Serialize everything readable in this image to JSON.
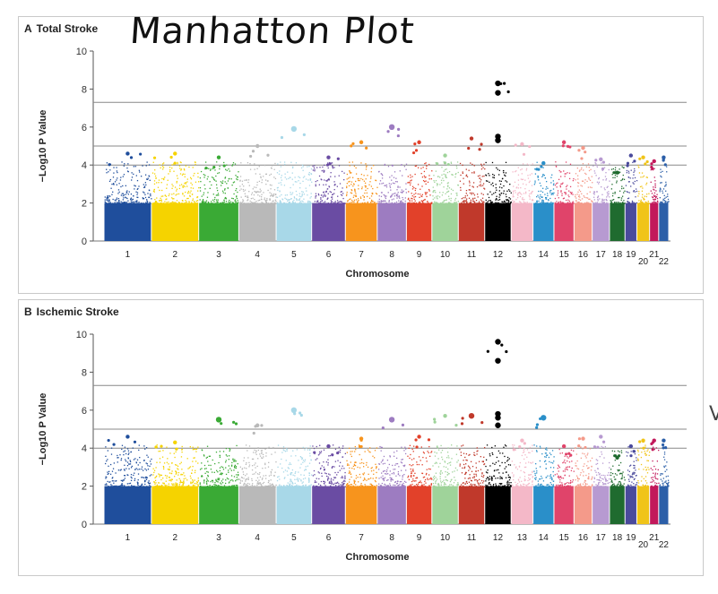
{
  "annotation": {
    "text": "Manhatton Plot"
  },
  "stray_mark": "V",
  "chart_data": [
    {
      "type": "scatter",
      "panel_letter": "A",
      "title": "Total Stroke",
      "xlabel": "Chromosome",
      "ylabel": "−Log10 P Value",
      "ylim": [
        0,
        10
      ],
      "yticks": [
        0,
        2,
        4,
        6,
        8,
        10
      ],
      "thresholds": [
        7.3,
        5,
        4
      ],
      "chromosomes": [
        "1",
        "2",
        "3",
        "4",
        "5",
        "6",
        "7",
        "8",
        "9",
        "10",
        "11",
        "12",
        "13",
        "14",
        "15",
        "16",
        "17",
        "18",
        "19",
        "20",
        "21",
        "22"
      ],
      "chromosome_colors": [
        "#1f4e9c",
        "#f5d300",
        "#3aaa35",
        "#b9b9b9",
        "#a8d8e8",
        "#6a4ca3",
        "#f7941d",
        "#9d7cc1",
        "#e2412a",
        "#9fd39a",
        "#c0392b",
        "#000000",
        "#f4b8c8",
        "#2a8fc9",
        "#e0446a",
        "#f49a8a",
        "#b79ad1",
        "#1f6b2f",
        "#4a4a9c",
        "#f0c419",
        "#c2185b",
        "#2c5fa8"
      ],
      "peaks": [
        {
          "chromosome": "1",
          "max": 4.6
        },
        {
          "chromosome": "2",
          "max": 4.6
        },
        {
          "chromosome": "3",
          "max": 4.4
        },
        {
          "chromosome": "4",
          "max": 5.0
        },
        {
          "chromosome": "5",
          "max": 5.9
        },
        {
          "chromosome": "6",
          "max": 4.4
        },
        {
          "chromosome": "7",
          "max": 5.2
        },
        {
          "chromosome": "8",
          "max": 6.0
        },
        {
          "chromosome": "9",
          "max": 5.2
        },
        {
          "chromosome": "10",
          "max": 4.5
        },
        {
          "chromosome": "11",
          "max": 5.4
        },
        {
          "chromosome": "12",
          "max": 8.3
        },
        {
          "chromosome": "13",
          "max": 5.1
        },
        {
          "chromosome": "14",
          "max": 4.1
        },
        {
          "chromosome": "15",
          "max": 5.2
        },
        {
          "chromosome": "16",
          "max": 4.9
        },
        {
          "chromosome": "17",
          "max": 4.3
        },
        {
          "chromosome": "18",
          "max": 3.6
        },
        {
          "chromosome": "19",
          "max": 4.5
        },
        {
          "chromosome": "20",
          "max": 4.4
        },
        {
          "chromosome": "21",
          "max": 4.2
        },
        {
          "chromosome": "22",
          "max": 4.4
        }
      ],
      "highlighted_points": [
        {
          "chromosome": "12",
          "value": 8.3
        },
        {
          "chromosome": "12",
          "value": 7.8
        },
        {
          "chromosome": "12",
          "value": 5.5
        },
        {
          "chromosome": "12",
          "value": 5.3
        },
        {
          "chromosome": "8",
          "value": 6.0
        },
        {
          "chromosome": "5",
          "value": 5.9
        }
      ]
    },
    {
      "type": "scatter",
      "panel_letter": "B",
      "title": "Ischemic Stroke",
      "xlabel": "Chromosome",
      "ylabel": "−Log10 P Value",
      "ylim": [
        0,
        10
      ],
      "yticks": [
        0,
        2,
        4,
        6,
        8,
        10
      ],
      "thresholds": [
        7.3,
        5,
        4
      ],
      "chromosomes": [
        "1",
        "2",
        "3",
        "4",
        "5",
        "6",
        "7",
        "8",
        "9",
        "10",
        "11",
        "12",
        "13",
        "14",
        "15",
        "16",
        "17",
        "18",
        "19",
        "20",
        "21",
        "22"
      ],
      "chromosome_colors": [
        "#1f4e9c",
        "#f5d300",
        "#3aaa35",
        "#b9b9b9",
        "#a8d8e8",
        "#6a4ca3",
        "#f7941d",
        "#9d7cc1",
        "#e2412a",
        "#9fd39a",
        "#c0392b",
        "#000000",
        "#f4b8c8",
        "#2a8fc9",
        "#e0446a",
        "#f49a8a",
        "#b79ad1",
        "#1f6b2f",
        "#4a4a9c",
        "#f0c419",
        "#c2185b",
        "#2c5fa8"
      ],
      "peaks": [
        {
          "chromosome": "1",
          "max": 4.6
        },
        {
          "chromosome": "2",
          "max": 4.3
        },
        {
          "chromosome": "3",
          "max": 5.5
        },
        {
          "chromosome": "4",
          "max": 5.2
        },
        {
          "chromosome": "5",
          "max": 6.0
        },
        {
          "chromosome": "6",
          "max": 4.1
        },
        {
          "chromosome": "7",
          "max": 4.5
        },
        {
          "chromosome": "8",
          "max": 5.5
        },
        {
          "chromosome": "9",
          "max": 4.6
        },
        {
          "chromosome": "10",
          "max": 5.7
        },
        {
          "chromosome": "11",
          "max": 5.7
        },
        {
          "chromosome": "12",
          "max": 9.6
        },
        {
          "chromosome": "13",
          "max": 4.4
        },
        {
          "chromosome": "14",
          "max": 5.6
        },
        {
          "chromosome": "15",
          "max": 4.1
        },
        {
          "chromosome": "16",
          "max": 4.5
        },
        {
          "chromosome": "17",
          "max": 4.6
        },
        {
          "chromosome": "18",
          "max": 3.5
        },
        {
          "chromosome": "19",
          "max": 4.1
        },
        {
          "chromosome": "20",
          "max": 4.4
        },
        {
          "chromosome": "21",
          "max": 4.4
        },
        {
          "chromosome": "22",
          "max": 4.4
        }
      ],
      "highlighted_points": [
        {
          "chromosome": "12",
          "value": 9.6
        },
        {
          "chromosome": "12",
          "value": 8.6
        },
        {
          "chromosome": "12",
          "value": 5.8
        },
        {
          "chromosome": "12",
          "value": 5.6
        },
        {
          "chromosome": "12",
          "value": 5.2
        },
        {
          "chromosome": "14",
          "value": 5.6
        },
        {
          "chromosome": "11",
          "value": 5.7
        },
        {
          "chromosome": "8",
          "value": 5.5
        },
        {
          "chromosome": "5",
          "value": 6.0
        },
        {
          "chromosome": "3",
          "value": 5.5
        }
      ]
    }
  ]
}
